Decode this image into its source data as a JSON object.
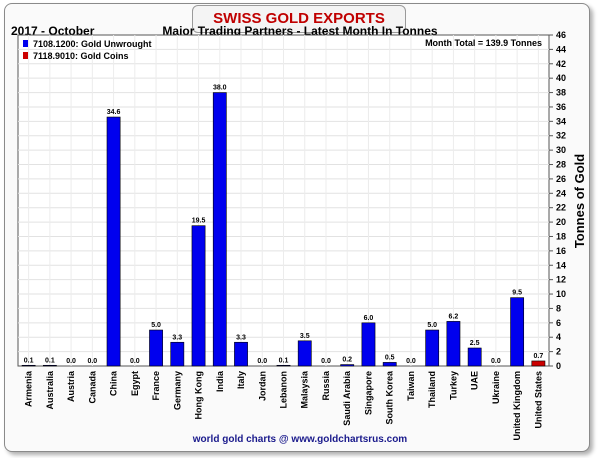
{
  "title": "SWISS GOLD EXPORTS",
  "period": "2017 - October",
  "subtitle": "Major Trading Partners - Latest Month In Tonnes",
  "footer": "world gold charts @ www.goldchartsrus.com",
  "chart_data": {
    "type": "bar",
    "title": "SWISS GOLD EXPORTS",
    "subtitle": "Major Trading Partners - Latest Month In Tonnes",
    "ylabel": "Tonnes of Gold",
    "ylim": [
      0,
      46
    ],
    "y_ticks": [
      0,
      2,
      4,
      6,
      8,
      10,
      12,
      14,
      16,
      18,
      20,
      22,
      24,
      26,
      28,
      30,
      32,
      34,
      36,
      38,
      40,
      42,
      44,
      46
    ],
    "y_axis_side": "right",
    "grid": true,
    "legend_position": "top-left",
    "annotation": "Month Total = 139.9 Tonnes",
    "categories": [
      "Armenia",
      "Australia",
      "Austria",
      "Canada",
      "China",
      "Egypt",
      "France",
      "Germany",
      "Hong Kong",
      "India",
      "Italy",
      "Jordan",
      "Lebanon",
      "Malaysia",
      "Russia",
      "Saudi Arabia",
      "Singapore",
      "South Korea",
      "Taiwan",
      "Thailand",
      "Turkey",
      "UAE",
      "Ukraine",
      "United Kingdom",
      "United States"
    ],
    "series": [
      {
        "name": "7108.1200: Gold Unwrought",
        "color": "#0000ee",
        "values": [
          0.1,
          0.1,
          0.0,
          0.0,
          34.6,
          0.0,
          5.0,
          3.3,
          19.5,
          38.0,
          3.3,
          0.0,
          0.1,
          3.5,
          0.0,
          0.2,
          6.0,
          0.5,
          0.0,
          5.0,
          6.2,
          2.5,
          0.0,
          9.5,
          0.0
        ]
      },
      {
        "name": "7118.9010: Gold Coins",
        "color": "#cc0000",
        "values": [
          0.0,
          0.0,
          0.0,
          0.0,
          0.0,
          0.0,
          0.0,
          0.0,
          0.0,
          0.0,
          0.0,
          0.0,
          0.0,
          0.0,
          0.0,
          0.0,
          0.0,
          0.0,
          0.0,
          0.0,
          0.0,
          0.0,
          0.0,
          0.0,
          0.7
        ]
      }
    ],
    "data_labels": [
      "0.1",
      "0.1",
      "0.0",
      "0.0",
      "34.6",
      "0.0",
      "5.0",
      "3.3",
      "19.5",
      "38.0",
      "3.3",
      "0.0",
      "0.1",
      "3.5",
      "0.0",
      "0.2",
      "6.0",
      "0.5",
      "0.0",
      "5.0",
      "6.2",
      "2.5",
      "0.0",
      "9.5",
      "0.7"
    ]
  }
}
